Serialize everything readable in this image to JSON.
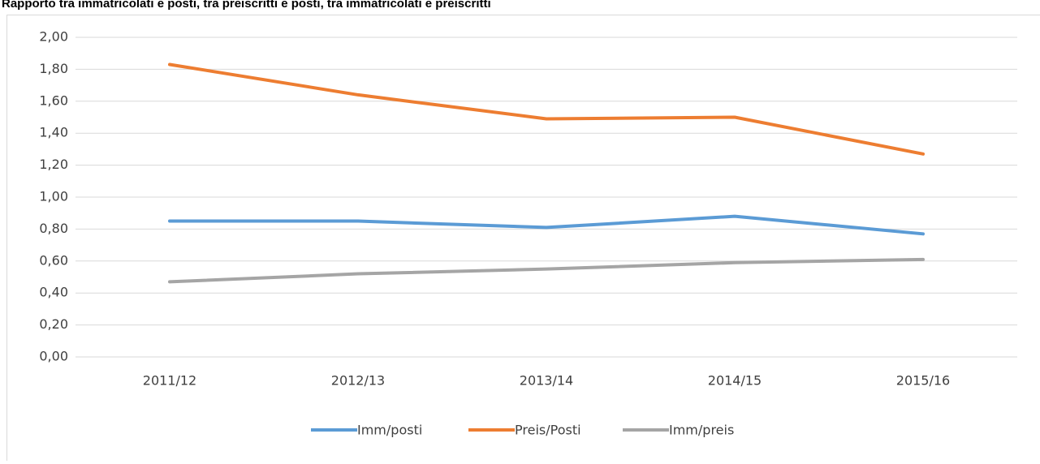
{
  "chart_data": {
    "type": "line",
    "title": "Rapporto tra immatricolati e posti, tra preiscritti e posti, tra immatricolati e preiscritti",
    "categories": [
      "2011/12",
      "2012/13",
      "2013/14",
      "2014/15",
      "2015/16"
    ],
    "series": [
      {
        "name": "Imm/posti",
        "color": "#5b9bd5",
        "values": [
          0.85,
          0.85,
          0.81,
          0.88,
          0.77
        ]
      },
      {
        "name": "Preis/Posti",
        "color": "#ed7d31",
        "values": [
          1.83,
          1.64,
          1.49,
          1.5,
          1.27
        ]
      },
      {
        "name": "Imm/preis",
        "color": "#a5a5a5",
        "values": [
          0.47,
          0.52,
          0.55,
          0.59,
          0.61
        ]
      }
    ],
    "ylim": [
      0,
      2
    ],
    "yticks": [
      {
        "value": 0,
        "label": "0,00"
      },
      {
        "value": 0.2,
        "label": "0,20"
      },
      {
        "value": 0.4,
        "label": "0,40"
      },
      {
        "value": 0.6,
        "label": "0,60"
      },
      {
        "value": 0.8,
        "label": "0,80"
      },
      {
        "value": 1,
        "label": "1,00"
      },
      {
        "value": 1.2,
        "label": "1,20"
      },
      {
        "value": 1.4,
        "label": "1,40"
      },
      {
        "value": 1.6,
        "label": "1,60"
      },
      {
        "value": 1.8,
        "label": "1,80"
      },
      {
        "value": 2,
        "label": "2,00"
      }
    ],
    "grid": true,
    "legend": "bottom"
  }
}
